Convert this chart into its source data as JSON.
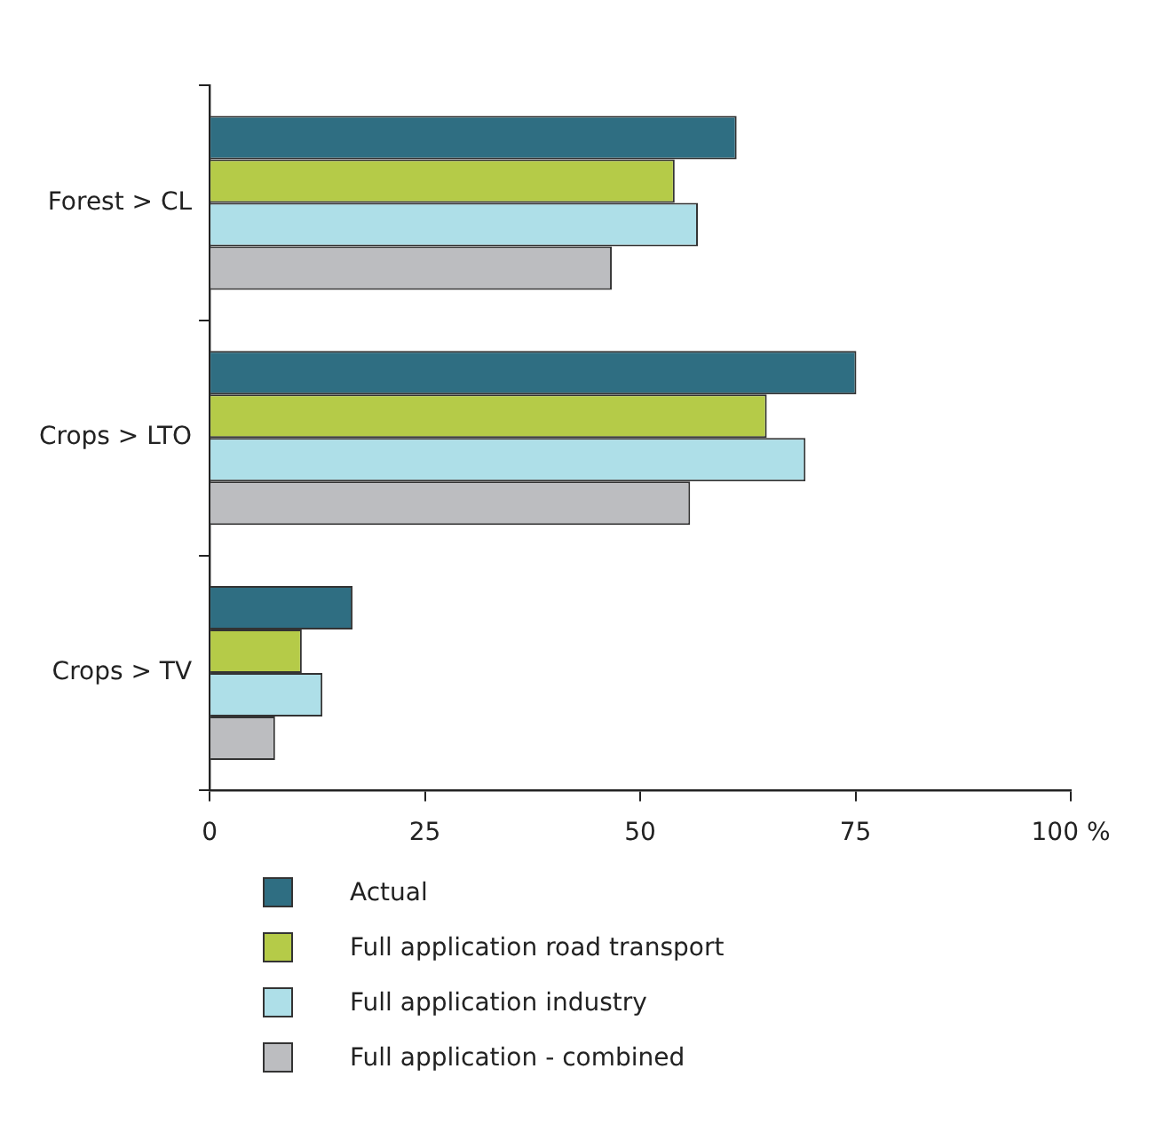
{
  "chart_data": {
    "type": "bar",
    "orientation": "horizontal",
    "categories": [
      "Forest > CL",
      "Crops > LTO",
      "Crops > TV"
    ],
    "series": [
      {
        "name": "Actual",
        "color": "#2f6e82",
        "values": [
          61.2,
          75.1,
          16.6
        ]
      },
      {
        "name": "Full application road transport",
        "color": "#b5cb48",
        "values": [
          54.0,
          64.7,
          10.7
        ]
      },
      {
        "name": "Full application industry",
        "color": "#aedfe8",
        "values": [
          56.7,
          69.2,
          13.1
        ]
      },
      {
        "name": "Full application - combined",
        "color": "#bcbdc0",
        "values": [
          46.7,
          55.8,
          7.6
        ]
      }
    ],
    "xlim": [
      0,
      100
    ],
    "xticks": [
      0,
      25,
      50,
      75,
      {
        "value": 100,
        "label": "100 %"
      }
    ],
    "grid": false,
    "legend": "bottom"
  }
}
